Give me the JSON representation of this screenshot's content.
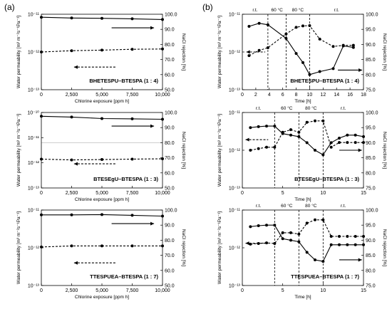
{
  "figure": {
    "label_a": "(a)",
    "label_b": "(b)"
  },
  "colors": {
    "line": "#000000",
    "axis": "#000000",
    "grid": "#bfbfbf",
    "divider": "#000000"
  },
  "chart_data": [
    {
      "id": "a1",
      "type": "line",
      "panel": "(a)",
      "sample": "BHETESPU–BTESPA",
      "ratio": "(1 : 4)",
      "xlabel": "Chlorine exposure [ppm h]",
      "ylabel_left": "Water permeability [m³ m⁻²s⁻¹Pa⁻¹]",
      "ylabel_right": "NaCl rejection [%]",
      "xlim": [
        0,
        10000
      ],
      "xticks": [
        0,
        2500,
        5000,
        7500,
        10000
      ],
      "xtick_labels": [
        "0",
        "2,500",
        "5,000",
        "7,500",
        "10,000"
      ],
      "ylim_left_exp": [
        -13,
        -11
      ],
      "ytick_left_labels": [
        "10⁻¹³",
        "10⁻¹²",
        "10⁻¹¹"
      ],
      "ylim_right": [
        50,
        100
      ],
      "yticks_right": [
        "50.0",
        "60.0",
        "70.0",
        "80.0",
        "90.0",
        "100.0"
      ],
      "grid_lines_right": [],
      "series": [
        {
          "name": "Water permeability",
          "axis": "left",
          "style": "dashed",
          "marker": "circle",
          "x": [
            0,
            2500,
            5000,
            7500,
            10000
          ],
          "y": [
            1e-12,
            1.08e-12,
            1.12e-12,
            1.18e-12,
            1.2e-12
          ]
        },
        {
          "name": "NaCl rejection",
          "axis": "right",
          "style": "solid",
          "marker": "circle",
          "x": [
            0,
            2500,
            5000,
            7500,
            10000
          ],
          "y": [
            98.0,
            97.5,
            97.3,
            97.0,
            96.5
          ]
        }
      ],
      "arrows": [
        {
          "direction": "right",
          "style": "solid",
          "x": [
            5800,
            9300
          ],
          "axis": "right",
          "y": 91
        },
        {
          "direction": "left",
          "style": "dashed",
          "x": [
            2700,
            6200
          ],
          "axis": "right",
          "y": 65
        }
      ],
      "dividers": [],
      "regions": []
    },
    {
      "id": "a2",
      "type": "line",
      "panel": "(a)",
      "sample": "BTESEgU–BTESPA",
      "ratio": "(1 : 3)",
      "xlabel": "Chlorine exposure [ppm h]",
      "ylabel_left": "Water permeability [m³ m⁻²s⁻¹Pa⁻¹]",
      "ylabel_right": "NaCl rejection [%]",
      "xlim": [
        0,
        10000
      ],
      "xticks": [
        0,
        2500,
        5000,
        7500,
        10000
      ],
      "xtick_labels": [
        "0",
        "2,500",
        "5,000",
        "7,500",
        "10,000"
      ],
      "ylim_left_exp": [
        -13,
        -10
      ],
      "ytick_left_labels": [
        "10⁻¹³",
        "10⁻¹²",
        "10⁻¹¹",
        "10⁻¹⁰"
      ],
      "ylim_right": [
        50,
        100
      ],
      "yticks_right": [
        "50.0",
        "60.0",
        "70.0",
        "80.0",
        "90.0",
        "100.0"
      ],
      "grid_lines_right": [
        80
      ],
      "series": [
        {
          "name": "Water permeability",
          "axis": "left",
          "style": "dashed",
          "marker": "circle",
          "x": [
            0,
            2500,
            5000,
            7500,
            10000
          ],
          "y": [
            1.4e-12,
            1.3e-12,
            1.35e-12,
            1.4e-12,
            1.45e-12
          ]
        },
        {
          "name": "NaCl rejection",
          "axis": "right",
          "style": "solid",
          "marker": "circle",
          "x": [
            0,
            2500,
            5000,
            7500,
            10000
          ],
          "y": [
            97.5,
            97.0,
            96.0,
            95.8,
            95.5
          ]
        }
      ],
      "arrows": [
        {
          "direction": "right",
          "style": "solid",
          "x": [
            5800,
            9300
          ],
          "axis": "right",
          "y": 91
        },
        {
          "direction": "left",
          "style": "dashed",
          "x": [
            2700,
            6200
          ],
          "axis": "right",
          "y": 66
        }
      ],
      "dividers": [],
      "regions": []
    },
    {
      "id": "a3",
      "type": "line",
      "panel": "(a)",
      "sample": "TTESPUEA–BTESPA",
      "ratio": "(1 : 7)",
      "xlabel": "Chlorine exposure [ppm h]",
      "ylabel_left": "Water permeability [m³ m⁻²s⁻¹Pa⁻¹]",
      "ylabel_right": "NaCl rejection [%]",
      "xlim": [
        0,
        10000
      ],
      "xticks": [
        0,
        2500,
        5000,
        7500,
        10000
      ],
      "xtick_labels": [
        "0",
        "2,500",
        "5,000",
        "7,500",
        "10,000"
      ],
      "ylim_left_exp": [
        -13,
        -11
      ],
      "ytick_left_labels": [
        "10⁻¹³",
        "10⁻¹²",
        "10⁻¹¹"
      ],
      "ylim_right": [
        50,
        100
      ],
      "yticks_right": [
        "50.0",
        "60.0",
        "70.0",
        "80.0",
        "90.0",
        "100.0"
      ],
      "grid_lines_right": [],
      "series": [
        {
          "name": "Water permeability",
          "axis": "left",
          "style": "dashed",
          "marker": "circle",
          "x": [
            0,
            2500,
            5000,
            7500,
            10000
          ],
          "y": [
            1.05e-12,
            1.12e-12,
            1.12e-12,
            1.12e-12,
            1.12e-12
          ]
        },
        {
          "name": "NaCl rejection",
          "axis": "right",
          "style": "solid",
          "marker": "circle",
          "x": [
            0,
            2500,
            5000,
            7500,
            10000
          ],
          "y": [
            96.8,
            96.8,
            97.0,
            96.5,
            96.0
          ]
        }
      ],
      "arrows": [
        {
          "direction": "right",
          "style": "solid",
          "x": [
            5800,
            9300
          ],
          "axis": "right",
          "y": 91
        },
        {
          "direction": "left",
          "style": "dashed",
          "x": [
            2700,
            6200
          ],
          "axis": "right",
          "y": 65
        }
      ],
      "dividers": [],
      "regions": []
    },
    {
      "id": "b1",
      "type": "line",
      "panel": "(b)",
      "sample": "BHETESPU–BTESPA",
      "ratio": "(1 : 4)",
      "xlabel": "Time [h]",
      "ylabel_left": "Water permeability [m³ m⁻²s⁻¹Pa⁻¹]",
      "ylabel_right": "NaCl rejection [%]",
      "xlim": [
        0,
        18
      ],
      "xticks": [
        0,
        2,
        4,
        6,
        8,
        10,
        12,
        14,
        16,
        18
      ],
      "xtick_labels": [
        "0",
        "2",
        "4",
        "6",
        "8",
        "10",
        "12",
        "14",
        "16",
        "18"
      ],
      "ylim_left_exp": [
        -13,
        -11
      ],
      "ytick_left_labels": [
        "10⁻¹³",
        "10⁻¹²",
        "10⁻¹¹"
      ],
      "ylim_right": [
        75,
        100
      ],
      "yticks_right": [
        "75.0",
        "80.0",
        "85.0",
        "90.0",
        "95.0",
        "100.0"
      ],
      "grid_lines_right": [],
      "series": [
        {
          "name": "Water permeability",
          "axis": "left",
          "style": "dashed",
          "marker": "circle",
          "x": [
            1,
            2.5,
            3.8,
            6.5,
            8,
            9,
            10,
            11.5,
            13.5,
            15,
            16.5
          ],
          "y": [
            8e-13,
            1.1e-12,
            1.3e-12,
            3e-12,
            4.5e-12,
            4.9e-12,
            5e-12,
            2.2e-12,
            1.4e-12,
            1.5e-12,
            1.5e-12
          ]
        },
        {
          "name": "NaCl rejection",
          "axis": "right",
          "style": "solid",
          "marker": "circle",
          "x": [
            1,
            2.5,
            3.8,
            6.5,
            8,
            9,
            10,
            11.5,
            13.5,
            15,
            16.5
          ],
          "y": [
            96.0,
            97.0,
            96.5,
            92.0,
            87.0,
            84.0,
            80.0,
            81.0,
            82.0,
            89.5,
            89.0
          ]
        }
      ],
      "arrows": [
        {
          "direction": "right",
          "style": "solid",
          "x": [
            14.2,
            17.8
          ],
          "axis": "right",
          "y": 81.5
        },
        {
          "direction": "left",
          "style": "dashed",
          "x": [
            0.6,
            3.4
          ],
          "axis": "right",
          "y": 87.5
        }
      ],
      "dividers": [
        3.8,
        6.5,
        10
      ],
      "regions": [
        {
          "label": "r.t.",
          "x": 1.9
        },
        {
          "label": "60 °C",
          "x": 5.15
        },
        {
          "label": "80 °C",
          "x": 8.25
        },
        {
          "label": "r.t.",
          "x": 14
        }
      ]
    },
    {
      "id": "b2",
      "type": "line",
      "panel": "(b)",
      "sample": "BTESEgU–BTESPA",
      "ratio": "(1 : 3)",
      "xlabel": "Time [h]",
      "ylabel_left": "Water permeability [m³ m⁻²s⁻¹Pa⁻¹]",
      "ylabel_right": "NaCl rejection [%]",
      "xlim": [
        0,
        15
      ],
      "xticks": [
        0,
        5,
        10,
        15
      ],
      "xtick_labels": [
        "0",
        "5",
        "10",
        "15"
      ],
      "ylim_left_exp": [
        -13,
        -11
      ],
      "ytick_left_labels": [
        "10⁻¹³",
        "10⁻¹²",
        "10⁻¹¹"
      ],
      "ylim_right": [
        75,
        100
      ],
      "yticks_right": [
        "75.0",
        "80.0",
        "85.0",
        "90.0",
        "95.0",
        "100.0"
      ],
      "grid_lines_right": [],
      "series": [
        {
          "name": "Water permeability",
          "axis": "left",
          "style": "dashed",
          "marker": "circle",
          "x": [
            1,
            2,
            3,
            4,
            5,
            6,
            7,
            8,
            9,
            10,
            11,
            12,
            13,
            14,
            15
          ],
          "y": [
            1e-12,
            1.1e-12,
            1.2e-12,
            1.2e-12,
            3e-12,
            3.5e-12,
            3e-12,
            5.5e-12,
            6e-12,
            6e-12,
            1.2e-12,
            1.6e-12,
            1.6e-12,
            1.6e-12,
            1.6e-12
          ]
        },
        {
          "name": "NaCl rejection",
          "axis": "right",
          "style": "solid",
          "marker": "circle",
          "x": [
            1,
            2,
            3,
            4,
            5,
            6,
            7,
            8,
            9,
            10,
            11,
            12,
            13,
            14,
            15
          ],
          "y": [
            95.0,
            95.3,
            95.5,
            95.5,
            93.0,
            92.5,
            92.0,
            90.0,
            87.5,
            86.0,
            90.0,
            91.5,
            92.5,
            92.5,
            92.0
          ]
        }
      ],
      "arrows": [
        {
          "direction": "right",
          "style": "solid",
          "x": [
            12,
            14.8
          ],
          "axis": "right",
          "y": 87.5
        },
        {
          "direction": "left",
          "style": "dashed",
          "x": [
            0.4,
            3.2
          ],
          "axis": "right",
          "y": 91
        }
      ],
      "dividers": [
        4,
        7,
        10
      ],
      "regions": [
        {
          "label": "r.t.",
          "x": 2
        },
        {
          "label": "60 °C",
          "x": 5.5
        },
        {
          "label": "80 °C",
          "x": 8.5
        },
        {
          "label": "r.t.",
          "x": 12.5
        }
      ]
    },
    {
      "id": "b3",
      "type": "line",
      "panel": "(b)",
      "sample": "TTESPUEA–BTESPA",
      "ratio": "(1 : 7)",
      "xlabel": "Time [h]",
      "ylabel_left": "Water permeability [m³ m⁻²s⁻¹Pa⁻¹]",
      "ylabel_right": "NaCl rejection [%]",
      "xlim": [
        0,
        15
      ],
      "xticks": [
        0,
        5,
        10,
        15
      ],
      "xtick_labels": [
        "0",
        "5",
        "10",
        "15"
      ],
      "ylim_left_exp": [
        -13,
        -11
      ],
      "ytick_left_labels": [
        "10⁻¹³",
        "10⁻¹²",
        "10⁻¹¹"
      ],
      "ylim_right": [
        75,
        100
      ],
      "yticks_right": [
        "75.0",
        "80.0",
        "85.0",
        "90.0",
        "95.0",
        "100.0"
      ],
      "grid_lines_right": [],
      "series": [
        {
          "name": "Water permeability",
          "axis": "left",
          "style": "dashed",
          "marker": "circle",
          "x": [
            1,
            2,
            3,
            4,
            5,
            6,
            7,
            8,
            9,
            10,
            11,
            12,
            13,
            14,
            15
          ],
          "y": [
            1.25e-12,
            1.3e-12,
            1.35e-12,
            1.3e-12,
            2.5e-12,
            2.5e-12,
            2.3e-12,
            4.5e-12,
            5.5e-12,
            5.5e-12,
            2e-12,
            2e-12,
            2e-12,
            2e-12,
            2e-12
          ]
        },
        {
          "name": "NaCl rejection",
          "axis": "right",
          "style": "solid",
          "marker": "circle",
          "x": [
            1,
            2,
            3,
            4,
            5,
            6,
            7,
            8,
            9,
            10,
            11,
            12,
            13,
            14,
            15
          ],
          "y": [
            94.5,
            94.8,
            95.0,
            95.0,
            90.5,
            90.0,
            89.5,
            86.0,
            83.5,
            83.0,
            88.5,
            88.5,
            88.5,
            88.5,
            88.5
          ]
        }
      ],
      "arrows": [
        {
          "direction": "right",
          "style": "solid",
          "x": [
            12,
            14.8
          ],
          "axis": "right",
          "y": 83.5
        },
        {
          "direction": "left",
          "style": "dashed",
          "x": [
            0.4,
            3.2
          ],
          "axis": "right",
          "y": 89
        }
      ],
      "dividers": [
        4,
        7,
        10
      ],
      "regions": [
        {
          "label": "r.t.",
          "x": 2
        },
        {
          "label": "60 °C",
          "x": 5.5
        },
        {
          "label": "80 °C",
          "x": 8.5
        },
        {
          "label": "r.t.",
          "x": 12.5
        }
      ]
    }
  ]
}
